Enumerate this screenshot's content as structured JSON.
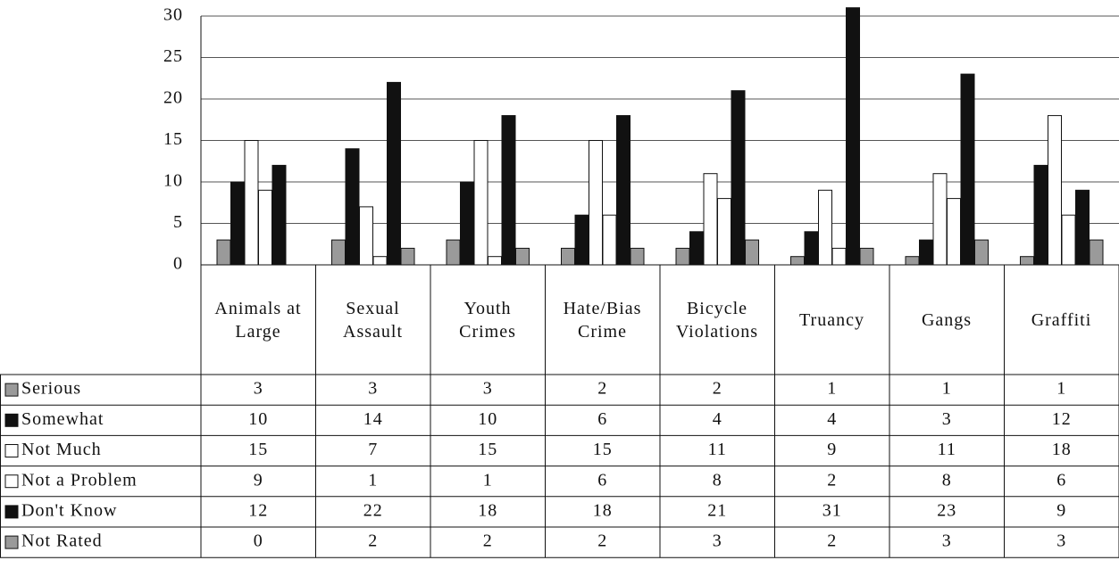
{
  "chart_data": {
    "type": "bar",
    "categories": [
      "Animals at Large",
      "Sexual Assault",
      "Youth Crimes",
      "Hate/Bias Crime",
      "Bicycle Violations",
      "Truancy",
      "Gangs",
      "Graffiti"
    ],
    "series": [
      {
        "name": "Serious",
        "color": "#9a9a9a",
        "values": [
          3,
          3,
          3,
          2,
          2,
          1,
          1,
          1
        ]
      },
      {
        "name": "Somewhat",
        "color": "#111111",
        "values": [
          10,
          14,
          10,
          6,
          4,
          4,
          3,
          12
        ]
      },
      {
        "name": "Not Much",
        "color": "#ffffff",
        "values": [
          15,
          7,
          15,
          15,
          11,
          9,
          11,
          18
        ]
      },
      {
        "name": "Not a Problem",
        "color": "#ffffff",
        "values": [
          9,
          1,
          1,
          6,
          8,
          2,
          8,
          6
        ]
      },
      {
        "name": "Don't Know",
        "color": "#111111",
        "values": [
          12,
          22,
          18,
          18,
          21,
          31,
          23,
          9
        ]
      },
      {
        "name": "Not Rated",
        "color": "#9a9a9a",
        "values": [
          0,
          2,
          2,
          2,
          3,
          2,
          3,
          3
        ]
      }
    ],
    "ylim": [
      0,
      30
    ],
    "yticks": [
      0,
      5,
      10,
      15,
      20,
      25,
      30
    ],
    "grid": true
  }
}
